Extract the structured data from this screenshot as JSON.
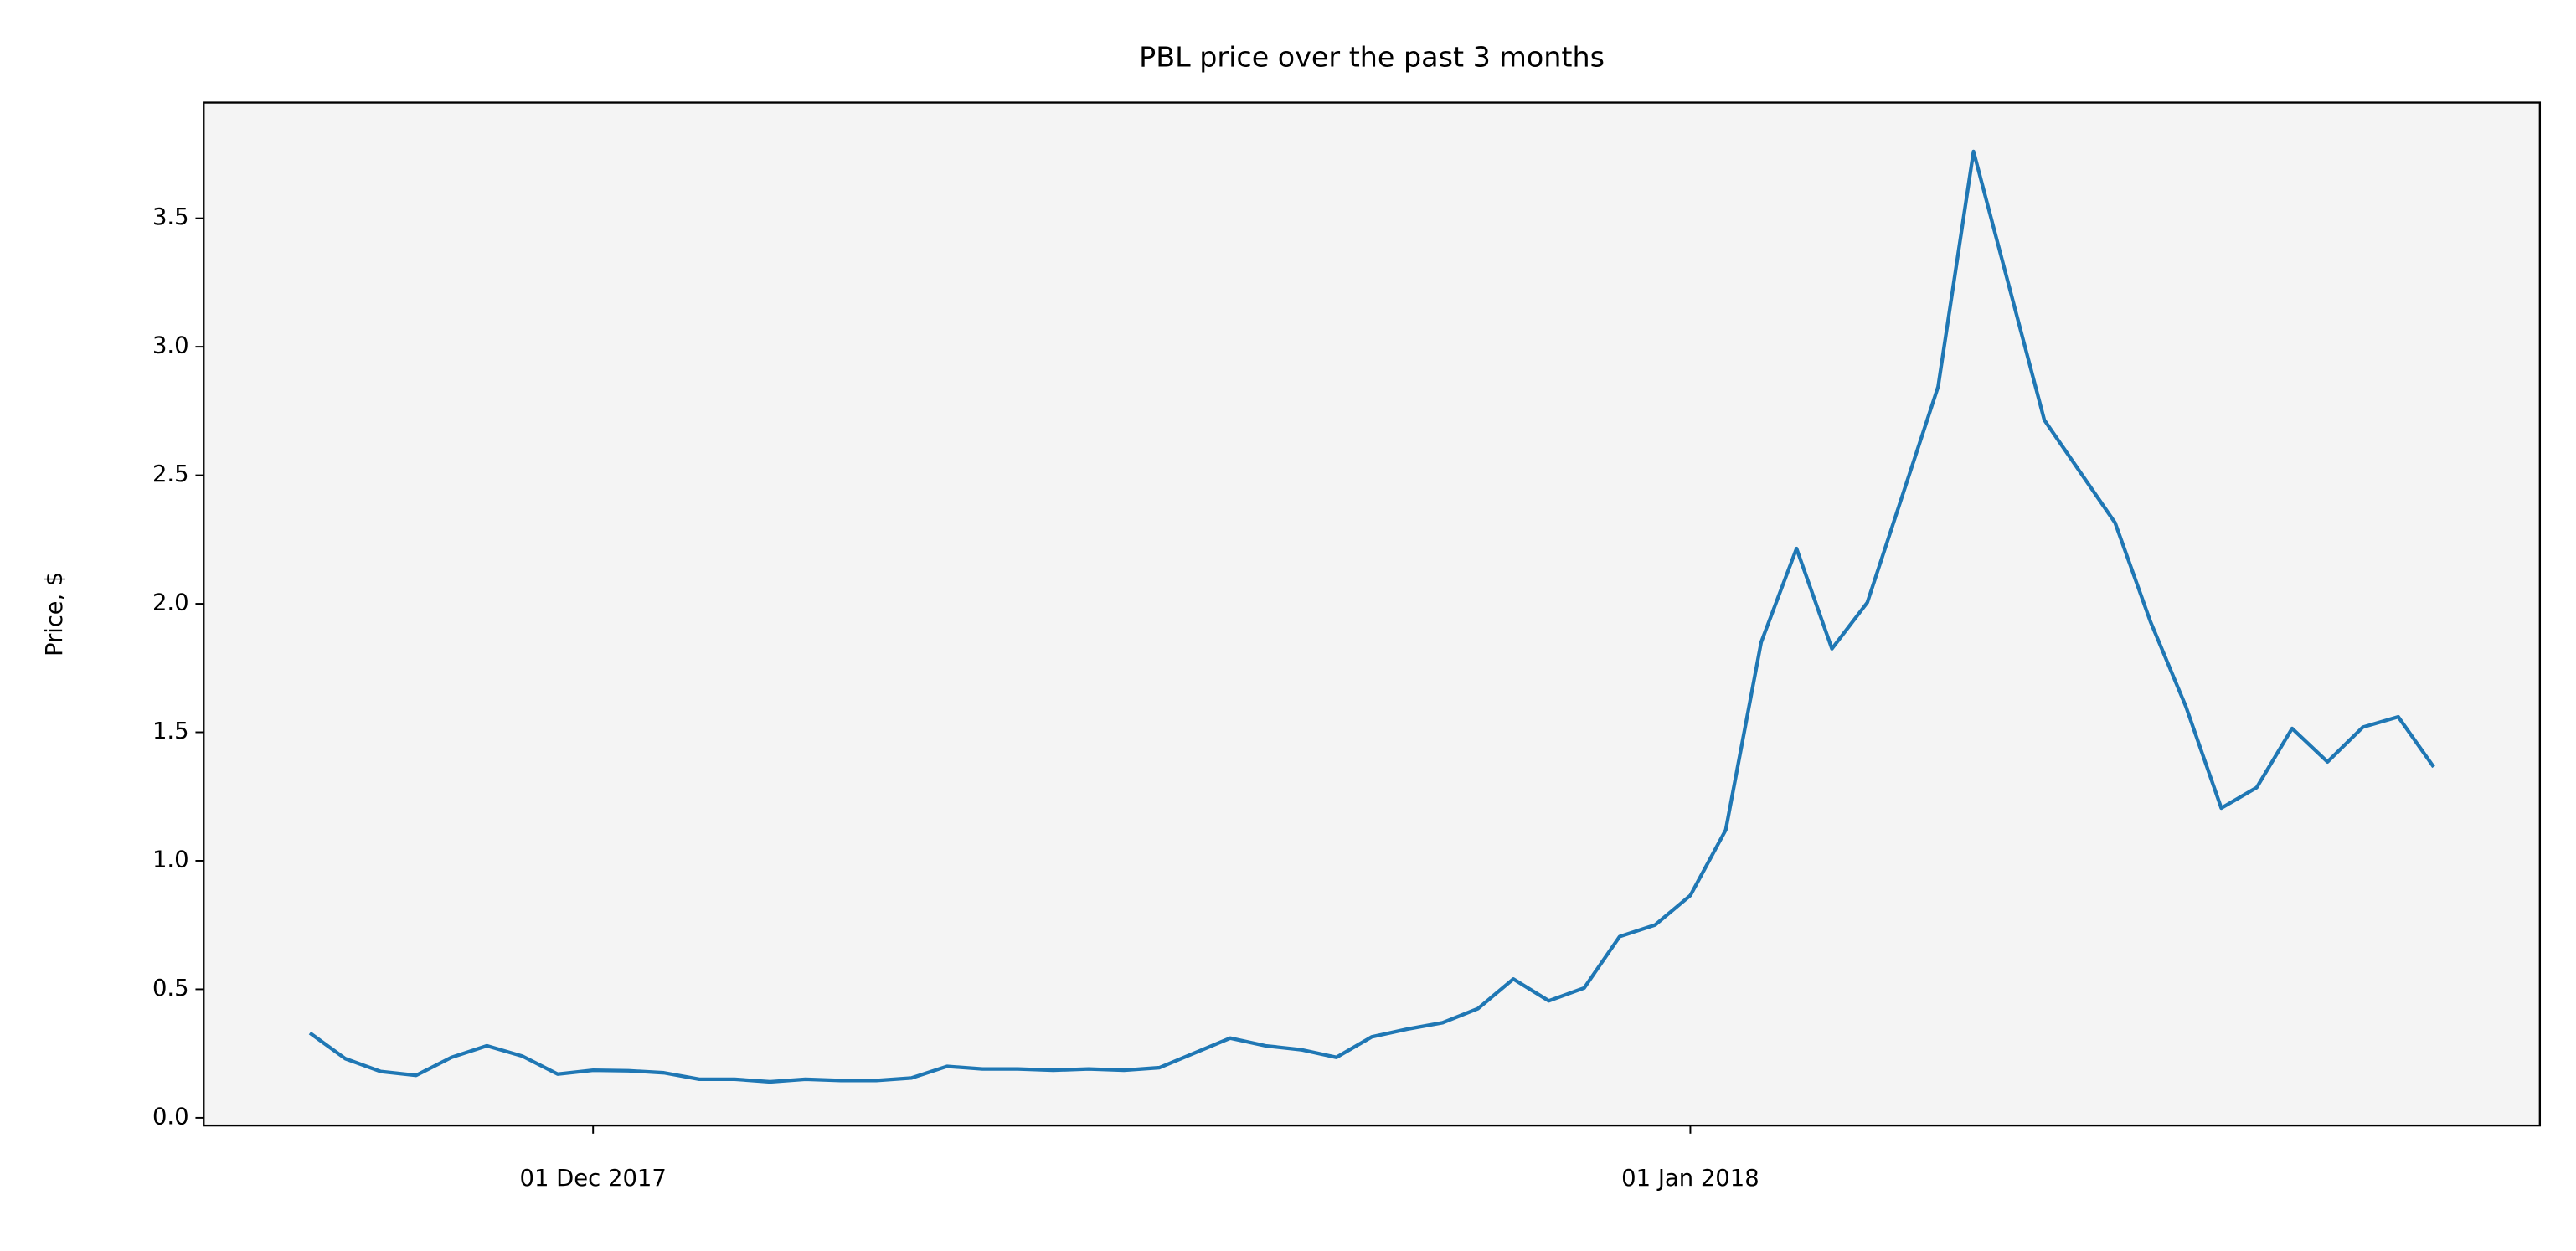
{
  "chart_data": {
    "type": "line",
    "title": "PBL price over the past 3 months",
    "y_label": "Price, $",
    "x": [
      "2017-11-23",
      "2017-11-24",
      "2017-11-25",
      "2017-11-26",
      "2017-11-27",
      "2017-11-28",
      "2017-11-29",
      "2017-11-30",
      "2017-12-01",
      "2017-12-02",
      "2017-12-03",
      "2017-12-04",
      "2017-12-05",
      "2017-12-06",
      "2017-12-07",
      "2017-12-08",
      "2017-12-09",
      "2017-12-10",
      "2017-12-11",
      "2017-12-12",
      "2017-12-13",
      "2017-12-14",
      "2017-12-15",
      "2017-12-16",
      "2017-12-17",
      "2017-12-19",
      "2017-12-20",
      "2017-12-21",
      "2017-12-22",
      "2017-12-23",
      "2017-12-24",
      "2017-12-25",
      "2017-12-26",
      "2017-12-27",
      "2017-12-28",
      "2017-12-29",
      "2017-12-30",
      "2017-12-31",
      "2018-01-01",
      "2018-01-02",
      "2018-01-03",
      "2018-01-04",
      "2018-01-05",
      "2018-01-06",
      "2018-01-08",
      "2018-01-09",
      "2018-01-11",
      "2018-01-13",
      "2018-01-14",
      "2018-01-15",
      "2018-01-16",
      "2018-01-17",
      "2018-01-18",
      "2018-01-19",
      "2018-01-20",
      "2018-01-21",
      "2018-01-22"
    ],
    "series": [
      {
        "name": "PBL",
        "color": "#1f77b4",
        "values": [
          0.33,
          0.23,
          0.18,
          0.165,
          0.235,
          0.28,
          0.24,
          0.17,
          0.185,
          0.183,
          0.175,
          0.15,
          0.15,
          0.14,
          0.15,
          0.145,
          0.145,
          0.155,
          0.2,
          0.19,
          0.19,
          0.185,
          0.19,
          0.185,
          0.195,
          0.31,
          0.28,
          0.265,
          0.235,
          0.315,
          0.345,
          0.37,
          0.425,
          0.54,
          0.455,
          0.505,
          0.705,
          0.75,
          0.865,
          1.12,
          1.85,
          2.215,
          1.825,
          2.005,
          2.845,
          3.76,
          2.715,
          2.315,
          1.93,
          1.6,
          1.205,
          1.285,
          1.515,
          1.385,
          1.52,
          1.56,
          1.365
        ]
      }
    ],
    "xlim": [
      "2017-11-20",
      "2018-01-25"
    ],
    "xticks": [
      {
        "value": "2017-12-01",
        "label": "01 Dec 2017"
      },
      {
        "value": "2018-01-01",
        "label": "01 Jan 2018"
      }
    ],
    "ylim": [
      -0.03,
      3.95
    ],
    "yticks": [
      {
        "value": 0,
        "label": "0.0"
      },
      0.5,
      {
        "value": 1,
        "label": "1.0"
      },
      1.5,
      {
        "value": 2,
        "label": "2.0"
      },
      2.5,
      {
        "value": 3,
        "label": "3.0"
      },
      3.5
    ],
    "background": "#f4f4f4"
  }
}
